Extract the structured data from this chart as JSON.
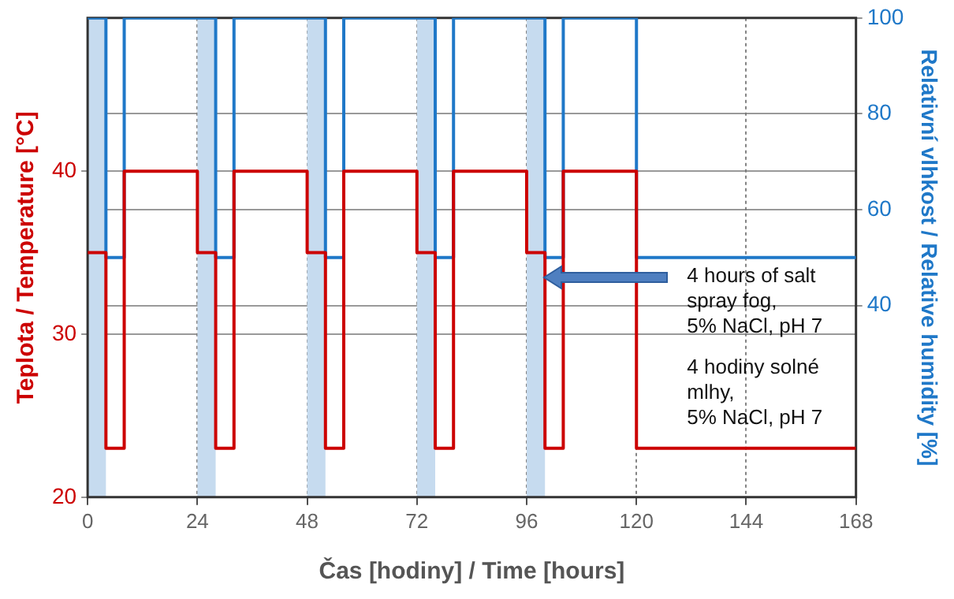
{
  "chart_data": {
    "type": "step",
    "xlabel": "Čas [hodiny] / Time [hours]",
    "ylabel": "Teplota / Temperature [°C]",
    "y2label": "Relativní vlhkost / Relative humidity [%]",
    "xlim": [
      0,
      168
    ],
    "xticks": [
      0,
      24,
      48,
      72,
      96,
      120,
      144,
      168
    ],
    "ylim": [
      20,
      49.4
    ],
    "yticks": [
      20,
      30,
      40
    ],
    "y2lim": [
      0,
      100
    ],
    "y2ticks": [
      40,
      60,
      80,
      100
    ],
    "grid": true,
    "legend": false,
    "series": [
      {
        "color": "#cc0000",
        "axis": "y",
        "x": [
          0,
          4,
          8,
          24,
          28,
          32,
          48,
          52,
          56,
          72,
          76,
          80,
          96,
          100,
          104,
          120,
          168
        ],
        "values": [
          35,
          23,
          40,
          35,
          23,
          40,
          35,
          23,
          40,
          35,
          23,
          40,
          35,
          23,
          40,
          23,
          23
        ]
      },
      {
        "color": "#1f78c8",
        "axis": "y2",
        "x": [
          0,
          4,
          8,
          24,
          28,
          32,
          48,
          52,
          56,
          72,
          76,
          80,
          96,
          100,
          104,
          120,
          168
        ],
        "values": [
          100,
          50,
          100,
          100,
          50,
          100,
          100,
          50,
          100,
          100,
          50,
          100,
          100,
          50,
          100,
          50,
          50
        ]
      }
    ],
    "bands": [
      {
        "axis": "x",
        "from": 0,
        "to": 4,
        "color": "#c6dbef"
      },
      {
        "axis": "x",
        "from": 24,
        "to": 28,
        "color": "#c6dbef"
      },
      {
        "axis": "x",
        "from": 48,
        "to": 52,
        "color": "#c6dbef"
      },
      {
        "axis": "x",
        "from": 72,
        "to": 76,
        "color": "#c6dbef"
      },
      {
        "axis": "x",
        "from": 96,
        "to": 100,
        "color": "#c6dbef"
      }
    ],
    "annotations": [
      "4 hours of salt\nspray fog,\n5% NaCl, pH 7",
      "4 hodiny solné\nmlhy,\n5% NaCl, pH 7"
    ]
  }
}
